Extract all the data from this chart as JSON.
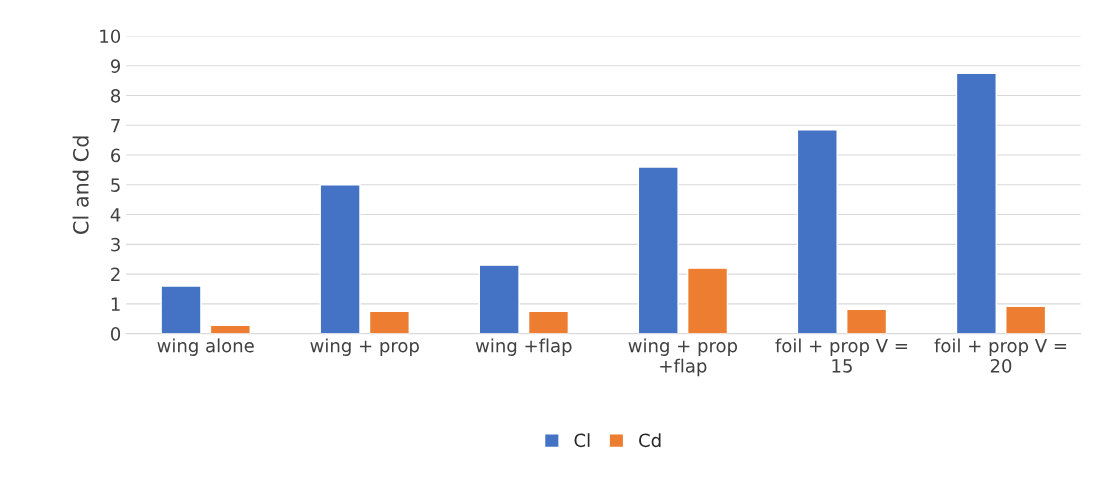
{
  "chart_data": {
    "type": "bar",
    "ylabel": "Cl and Cd",
    "categories": [
      "wing alone",
      "wing + prop",
      "wing +flap",
      "wing + prop +flap",
      "foil + prop V = 15",
      "foil + prop V = 20"
    ],
    "series": [
      {
        "name": "Cl",
        "color": "#4472c4",
        "values": [
          1.6,
          5.0,
          2.3,
          5.6,
          6.85,
          8.75
        ]
      },
      {
        "name": "Cd",
        "color": "#ed7d31",
        "values": [
          0.28,
          0.75,
          0.75,
          2.2,
          0.82,
          0.92
        ]
      }
    ],
    "ylim": [
      0,
      10
    ],
    "yticks": [
      0,
      1,
      2,
      3,
      4,
      5,
      6,
      7,
      8,
      9,
      10
    ],
    "grid": "y",
    "legend": "bottom"
  }
}
